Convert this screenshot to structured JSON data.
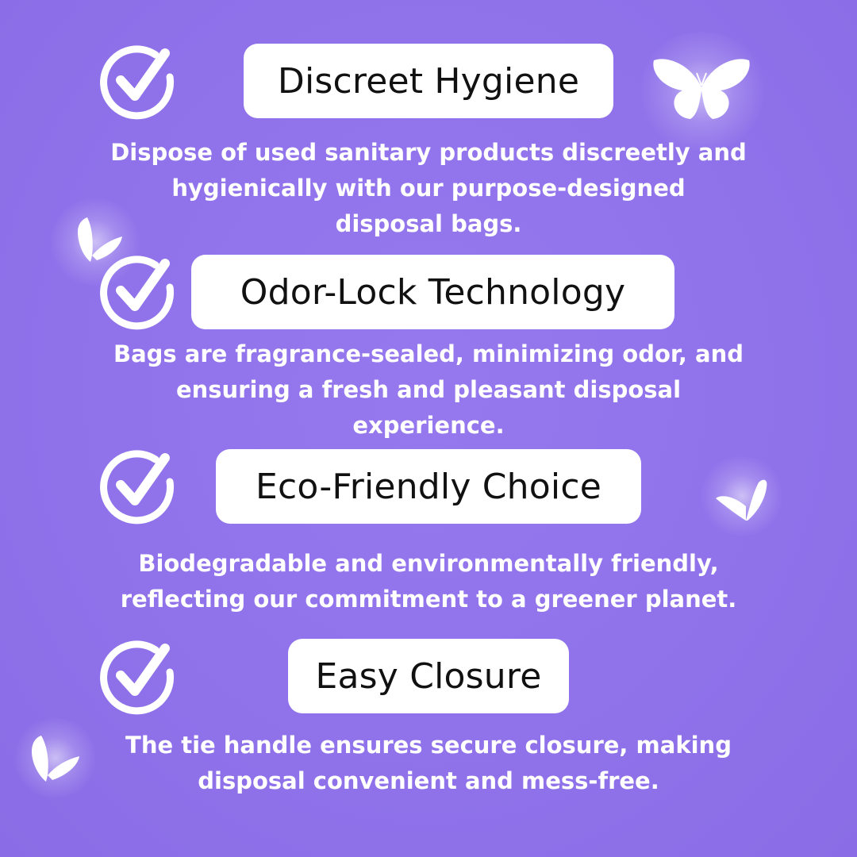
{
  "features": [
    {
      "title": "Discreet Hygiene",
      "lines": [
        "Dispose of used sanitary products discreetly and",
        "hygienically with our purpose-designed",
        "disposal bags."
      ]
    },
    {
      "title": "Odor-Lock Technology",
      "lines": [
        "Bags are fragrance-sealed, minimizing odor, and",
        "ensuring a fresh and pleasant disposal",
        "experience."
      ]
    },
    {
      "title": "Eco-Friendly Choice",
      "lines": [
        "Biodegradable and environmentally friendly,",
        "reflecting our commitment to a greener planet."
      ]
    },
    {
      "title": "Easy Closure",
      "lines": [
        "The tie handle ensures secure closure, making",
        "disposal convenient and mess-free."
      ]
    }
  ],
  "icons": {
    "check": "check-circle-icon",
    "decoration": "butterfly-icon"
  },
  "colors": {
    "background": "#9173ec",
    "pill": "#ffffff",
    "title_text": "#111111",
    "body_text": "#ffffff"
  }
}
